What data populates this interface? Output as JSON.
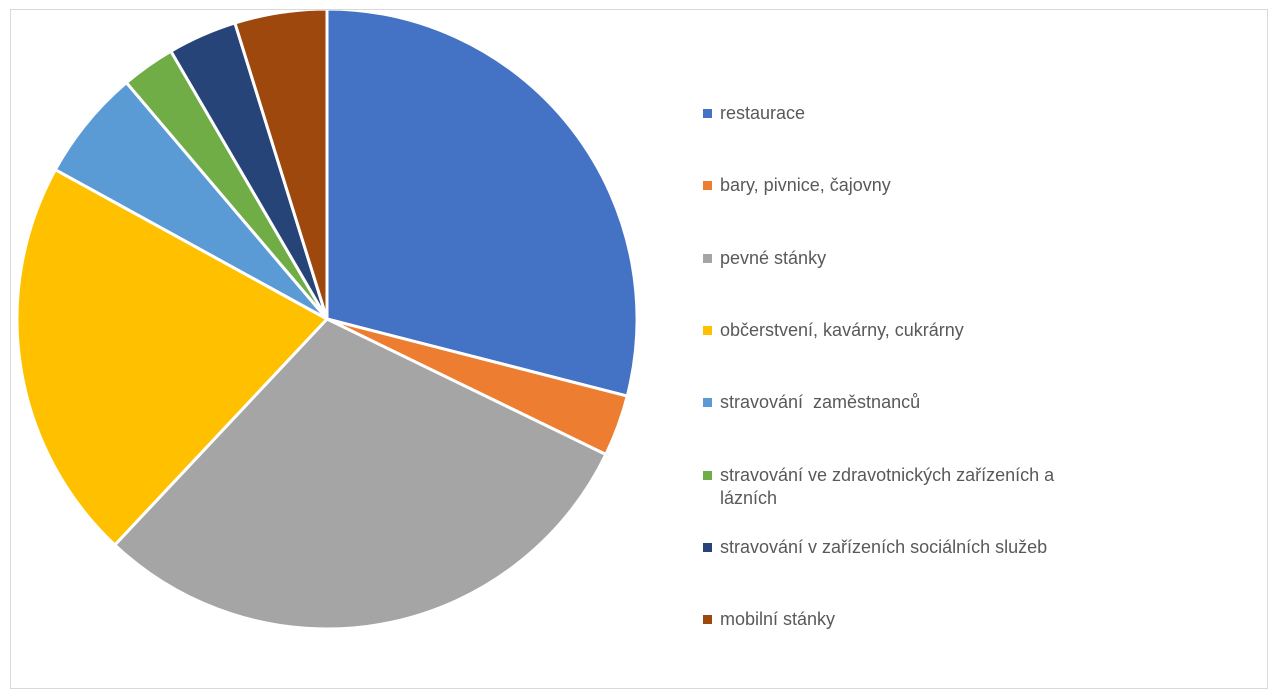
{
  "chart_data": {
    "type": "pie",
    "title": "",
    "legend_position": "right",
    "slices": [
      {
        "label": "restaurace",
        "value": 29.0,
        "color": "#4472C4"
      },
      {
        "label": "bary, pivnice, čajovny",
        "value": 3.2,
        "color": "#ED7D31"
      },
      {
        "label": "pevné stánky",
        "value": 29.8,
        "color": "#A5A5A5"
      },
      {
        "label": "občerstvení, kavárny, cukrárny",
        "value": 21.0,
        "color": "#FFC000"
      },
      {
        "label": "stravování  zaměstnanců",
        "value": 5.8,
        "color": "#5B9BD5"
      },
      {
        "label": "stravování ve zdravotnických zařízeních a lázních",
        "value": 2.8,
        "color": "#70AD47"
      },
      {
        "label": "stravování v zařízeních sociálních služeb",
        "value": 3.6,
        "color": "#264478"
      },
      {
        "label": "mobilní stánky",
        "value": 4.8,
        "color": "#9E480E"
      }
    ]
  }
}
